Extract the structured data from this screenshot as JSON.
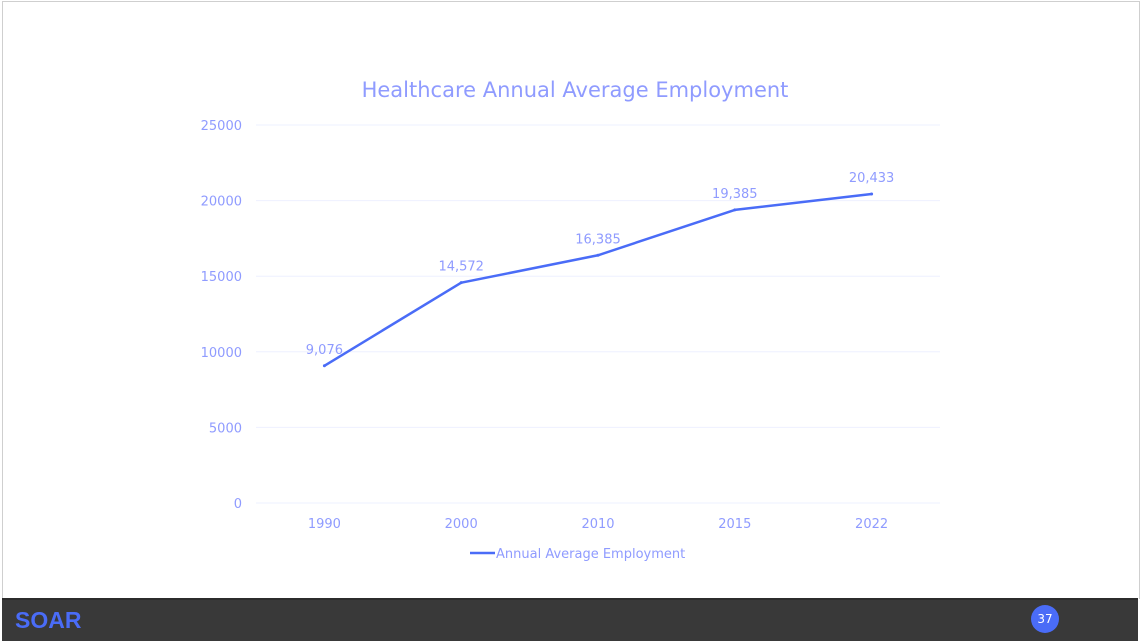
{
  "chart_data": {
    "type": "line",
    "title": "Healthcare Annual Average Employment",
    "categories": [
      "1990",
      "2000",
      "2010",
      "2015",
      "2022"
    ],
    "series": [
      {
        "name": "Annual Average Employment",
        "values": [
          9076,
          14572,
          16385,
          19385,
          20433
        ],
        "labels": [
          "9,076",
          "14,572",
          "16,385",
          "19,385",
          "20,433"
        ],
        "color": "#4a6cf7"
      }
    ],
    "ylim": [
      0,
      25000
    ],
    "yticks": [
      "0",
      "5000",
      "10000",
      "15000",
      "20000",
      "25000"
    ],
    "grid": true,
    "legend": "bottom",
    "text_color": "#8f9bff"
  },
  "footer": {
    "logo": "SOAR",
    "page_number": "37"
  }
}
